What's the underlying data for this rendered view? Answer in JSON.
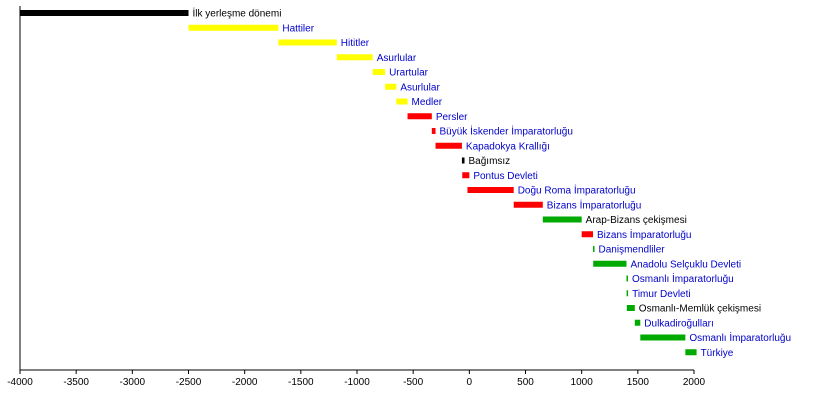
{
  "chart_data": {
    "type": "bar",
    "orientation": "horizontal-timeline",
    "xlim": [
      -4000,
      2000
    ],
    "x_ticks": [
      -4000,
      -3500,
      -3000,
      -2500,
      -2000,
      -1500,
      -1000,
      -500,
      0,
      500,
      1000,
      1500,
      2000
    ],
    "tick_labels": [
      "-4000",
      "-3500",
      "-3000",
      "-2500",
      "-2000",
      "-1500",
      "-1000",
      "-500",
      "0",
      "500",
      "1000",
      "1500",
      "2000"
    ],
    "grid": false,
    "legend": "none",
    "colors": {
      "black": "#000000",
      "yellow": "#ffff00",
      "red": "#ff0000",
      "green": "#00aa00",
      "label_link": "#0000cc",
      "label_plain": "#000000"
    },
    "bars": [
      {
        "label": "İlk yerleşme dönemi",
        "start": -4000,
        "end": -2500,
        "color": "black",
        "link": false
      },
      {
        "label": "Hattiler",
        "start": -2500,
        "end": -1700,
        "color": "yellow",
        "link": true
      },
      {
        "label": "Hititler",
        "start": -1700,
        "end": -1180,
        "color": "yellow",
        "link": true
      },
      {
        "label": "Asurlular",
        "start": -1180,
        "end": -860,
        "color": "yellow",
        "link": true
      },
      {
        "label": "Urartular",
        "start": -860,
        "end": -750,
        "color": "yellow",
        "link": true
      },
      {
        "label": "Asurlular",
        "start": -750,
        "end": -650,
        "color": "yellow",
        "link": true
      },
      {
        "label": "Medler",
        "start": -650,
        "end": -550,
        "color": "yellow",
        "link": true
      },
      {
        "label": "Persler",
        "start": -550,
        "end": -334,
        "color": "red",
        "link": true
      },
      {
        "label": "Büyük İskender İmparatorluğu",
        "start": -334,
        "end": -301,
        "color": "red",
        "link": true
      },
      {
        "label": "Kapadokya Krallığı",
        "start": -301,
        "end": -66,
        "color": "red",
        "link": true
      },
      {
        "label": "Bağımsız",
        "start": -66,
        "end": -43,
        "color": "black",
        "link": false
      },
      {
        "label": "Pontus Devleti",
        "start": -63,
        "end": 0,
        "color": "red",
        "link": true
      },
      {
        "label": "Doğu Roma İmparatorluğu",
        "start": -17,
        "end": 395,
        "color": "red",
        "link": true
      },
      {
        "label": "Bizans İmparatorluğu",
        "start": 395,
        "end": 654,
        "color": "red",
        "link": true
      },
      {
        "label": "Arap-Bizans çekişmesi",
        "start": 654,
        "end": 1000,
        "color": "green",
        "link": false
      },
      {
        "label": "Bizans İmparatorluğu",
        "start": 1000,
        "end": 1101,
        "color": "red",
        "link": true
      },
      {
        "label": "Danişmendliler",
        "start": 1101,
        "end": 1103,
        "color": "green",
        "link": true
      },
      {
        "label": "Anadolu Selçuklu Devleti",
        "start": 1103,
        "end": 1399,
        "color": "green",
        "link": true
      },
      {
        "label": "Osmanlı İmparatorluğu",
        "start": 1399,
        "end": 1400,
        "color": "green",
        "link": true
      },
      {
        "label": "Timur Devleti",
        "start": 1400,
        "end": 1402,
        "color": "green",
        "link": true
      },
      {
        "label": "Osmanlı-Memlük çekişmesi",
        "start": 1402,
        "end": 1473,
        "color": "green",
        "link": false
      },
      {
        "label": "Dulkadiroğulları",
        "start": 1473,
        "end": 1522,
        "color": "green",
        "link": true
      },
      {
        "label": "Osmanlı İmparatorluğu",
        "start": 1522,
        "end": 1923,
        "color": "green",
        "link": true
      },
      {
        "label": "Türkiye",
        "start": 1923,
        "end": 2023,
        "color": "green",
        "link": true
      }
    ]
  }
}
